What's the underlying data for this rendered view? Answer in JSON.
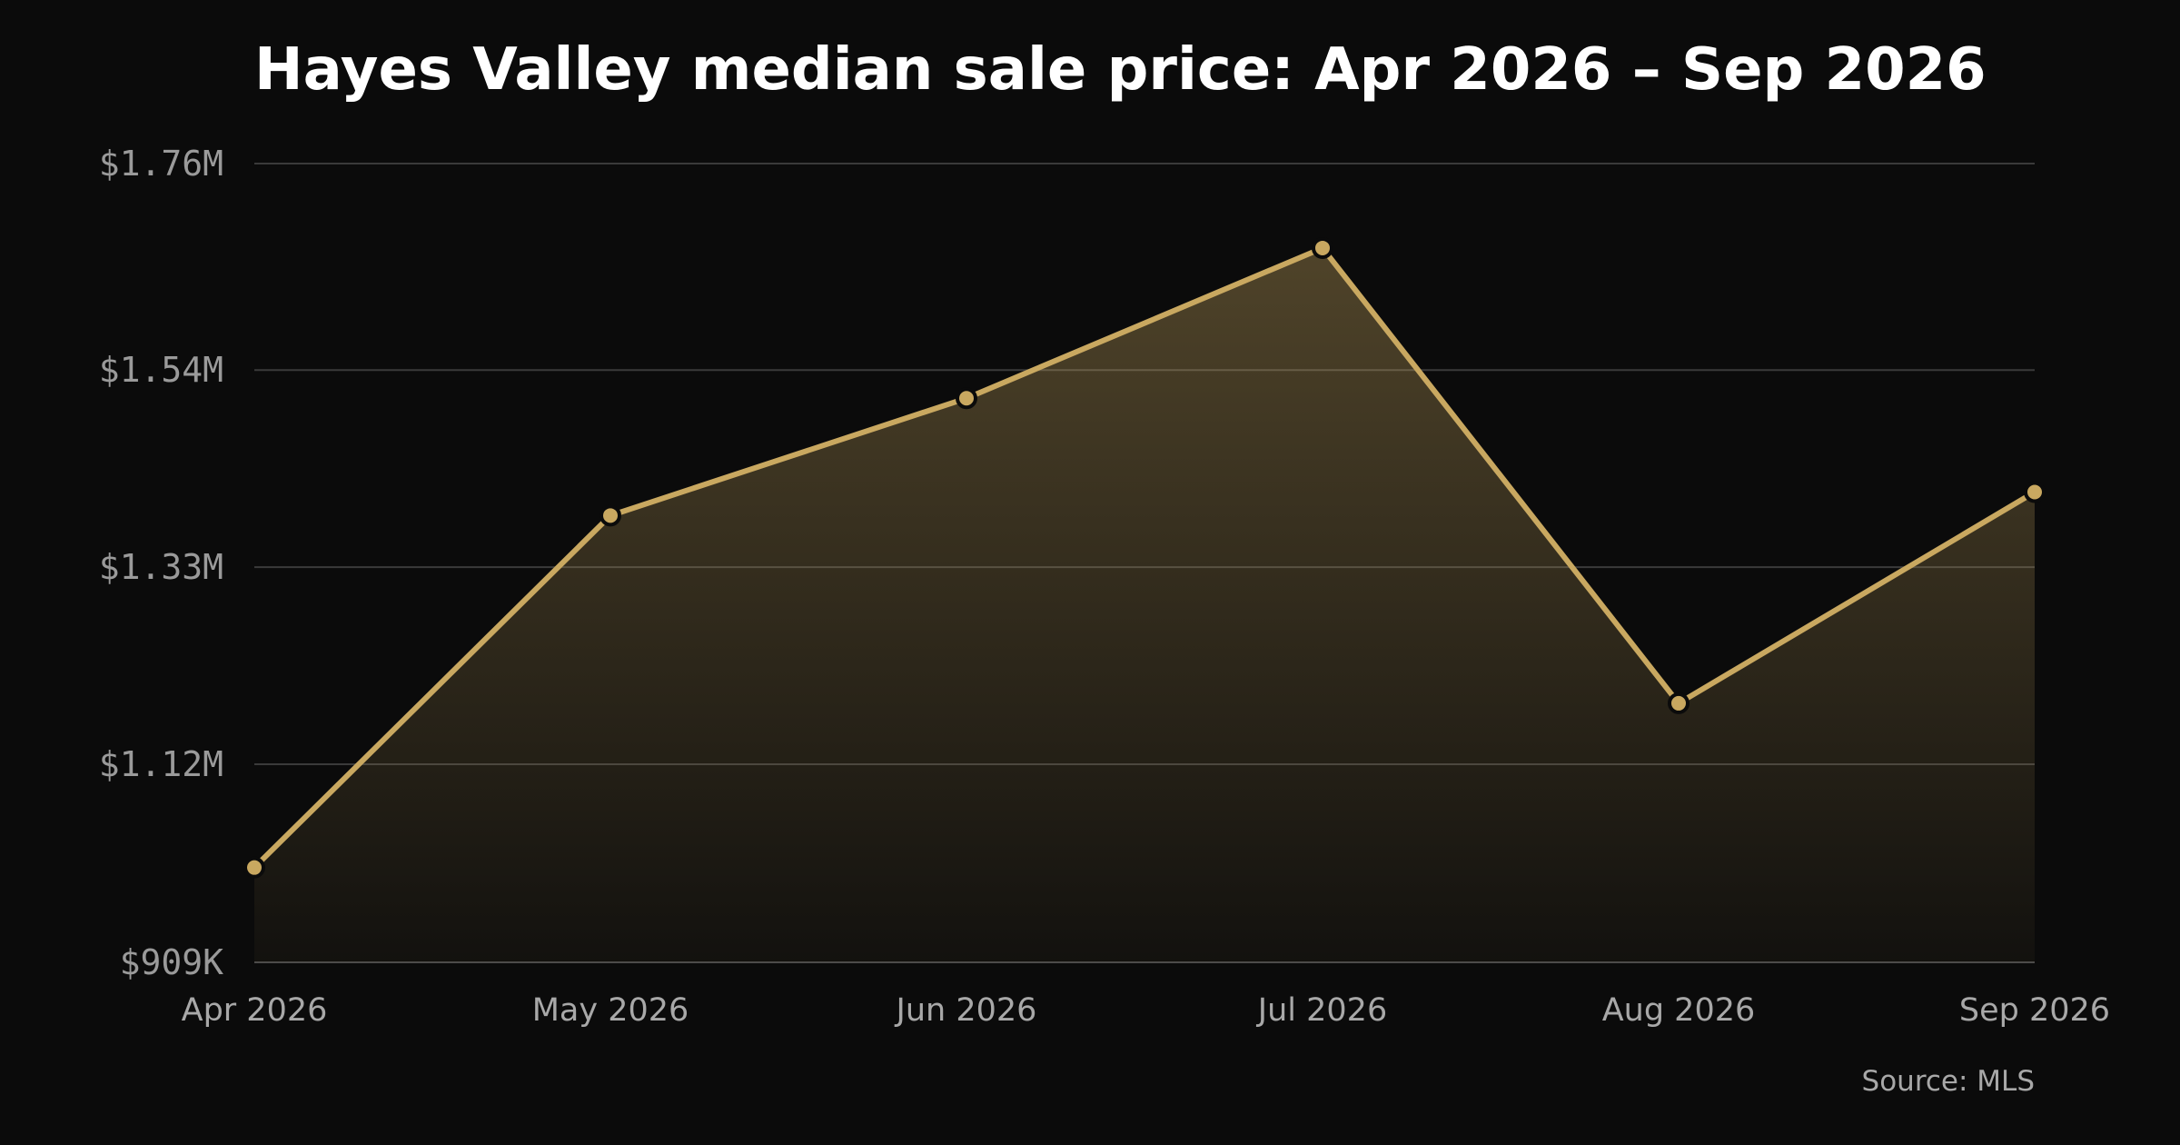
{
  "colors": {
    "background": "#0b0b0b",
    "line": "#c9a860",
    "marker_stroke": "#0b0b0b",
    "grid": "#3a3a3a",
    "title": "#ffffff",
    "tick_label": "#9a9a9a"
  },
  "source": "Source: MLS",
  "chart_data": {
    "type": "area",
    "title": "Hayes Valley median sale price: Apr 2026 – Sep 2026",
    "xlabel": "",
    "ylabel": "",
    "categories": [
      "Apr 2026",
      "May 2026",
      "Jun 2026",
      "Jul 2026",
      "Aug 2026",
      "Sep 2026"
    ],
    "series": [
      {
        "values": [
          1010000,
          1385000,
          1510000,
          1670000,
          1185000,
          1410000
        ]
      }
    ],
    "ylim": [
      909000,
      1760000
    ],
    "yticks": [
      {
        "value": 909000,
        "label": "$909K"
      },
      {
        "value": 1120000,
        "label": "$1.12M"
      },
      {
        "value": 1330000,
        "label": "$1.33M"
      },
      {
        "value": 1540000,
        "label": "$1.54M"
      },
      {
        "value": 1760000,
        "label": "$1.76M"
      }
    ],
    "grid": true,
    "markers": true,
    "legend": "none"
  }
}
